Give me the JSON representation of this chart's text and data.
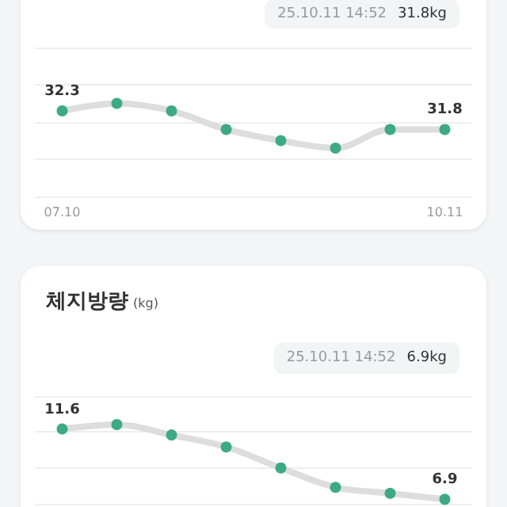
{
  "chart_data": [
    {
      "type": "line",
      "annotations": [
        "25.10.11 14:52",
        "31.8kg"
      ],
      "categories": [
        "07.10",
        null,
        null,
        null,
        null,
        null,
        null,
        "10.11"
      ],
      "series": [
        {
          "color": "#3daa85",
          "values": [
            32.3,
            32.5,
            32.3,
            31.8,
            31.5,
            31.3,
            31.8,
            31.8
          ],
          "value_labels": [
            "32.3",
            null,
            null,
            null,
            null,
            null,
            null,
            "31.8"
          ]
        }
      ],
      "ylim": [
        30,
        34
      ],
      "yticks": [
        {
          "value": 30,
          "label": null
        },
        {
          "value": 31,
          "label": null
        },
        {
          "value": 32,
          "label": null
        },
        {
          "value": 33,
          "label": null
        },
        {
          "value": 34,
          "label": null
        }
      ],
      "grid": "y",
      "tick_labels": "x",
      "marker": "circle",
      "line_style": "solid"
    },
    {
      "type": "line",
      "title": "체지방량",
      "ylabel": "(kg)",
      "annotations": [
        "25.10.11 14:52",
        "6.9kg"
      ],
      "categories": [
        null,
        null,
        null,
        null,
        null,
        null,
        null,
        null
      ],
      "series": [
        {
          "color": "#3daa85",
          "values": [
            11.6,
            11.9,
            11.2,
            10.4,
            9.0,
            7.7,
            7.3,
            6.9
          ],
          "value_labels": [
            "11.6",
            null,
            null,
            null,
            null,
            null,
            null,
            "6.9"
          ]
        }
      ],
      "ylim": [
        6.6,
        13.8
      ],
      "yticks": [
        {
          "value": 13.8,
          "label": null
        },
        {
          "value": 11.4,
          "label": null
        },
        {
          "value": 9.0,
          "label": null
        },
        {
          "value": 6.6,
          "label": null
        }
      ],
      "grid": "y",
      "tick_labels": false,
      "marker": "circle",
      "line_style": "solid"
    }
  ]
}
